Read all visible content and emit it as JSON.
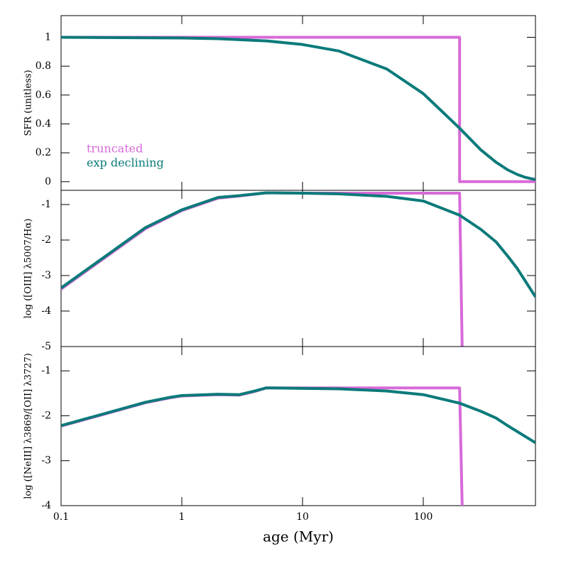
{
  "chart_data": [
    {
      "type": "line",
      "ylabel": "SFR (unitless)",
      "xlim": [
        0.1,
        850
      ],
      "xlog": true,
      "ylim": [
        -0.06,
        1.15
      ],
      "yticks": [
        0,
        0.2,
        0.4,
        0.6,
        0.8,
        1
      ],
      "legend": "lower left",
      "series": [
        {
          "name": "truncated",
          "color": "#d86ad8",
          "x": [
            0.1,
            200,
            200,
            850
          ],
          "values": [
            1,
            1,
            0,
            0
          ]
        },
        {
          "name": "exp declining",
          "color": "#0b7a7a",
          "x": [
            0.1,
            1,
            2,
            5,
            10,
            20,
            50,
            100,
            150,
            200,
            300,
            400,
            500,
            600,
            700,
            850
          ],
          "values": [
            1,
            0.995,
            0.99,
            0.975,
            0.95,
            0.905,
            0.78,
            0.61,
            0.47,
            0.37,
            0.22,
            0.135,
            0.082,
            0.05,
            0.03,
            0.014
          ]
        }
      ]
    },
    {
      "type": "line",
      "ylabel": "log ([OIII] λ5007/Hα)",
      "xlim": [
        0.1,
        850
      ],
      "xlog": true,
      "ylim": [
        -5,
        -0.6
      ],
      "yticks": [
        -5,
        -4,
        -3,
        -2,
        -1
      ],
      "series": [
        {
          "color": "#d86ad8",
          "x": [
            0.1,
            0.5,
            1,
            2,
            3,
            5,
            10,
            20,
            50,
            100,
            200,
            210
          ],
          "values": [
            -3.38,
            -1.68,
            -1.17,
            -0.82,
            -0.76,
            -0.67,
            -0.68,
            -0.68,
            -0.68,
            -0.68,
            -0.68,
            -5
          ]
        },
        {
          "color": "#0b7a7a",
          "x": [
            0.1,
            0.5,
            1,
            2,
            3,
            5,
            10,
            20,
            50,
            100,
            200,
            300,
            400,
            500,
            600,
            850
          ],
          "values": [
            -3.35,
            -1.65,
            -1.15,
            -0.8,
            -0.75,
            -0.67,
            -0.68,
            -0.7,
            -0.77,
            -0.9,
            -1.3,
            -1.7,
            -2.05,
            -2.45,
            -2.8,
            -3.6
          ]
        }
      ]
    },
    {
      "type": "line",
      "ylabel": "log ([NeIII] λ3869/[OII] λ3727)",
      "xlabel": "age (Myr)",
      "xlim": [
        0.1,
        850
      ],
      "xlog": true,
      "ylim": [
        -4,
        -0.46
      ],
      "yticks": [
        -4,
        -3,
        -2,
        -1
      ],
      "xticks": [
        0.1,
        1,
        10,
        100
      ],
      "series": [
        {
          "color": "#d86ad8",
          "x": [
            0.1,
            0.5,
            0.8,
            1,
            2,
            3,
            4,
            5,
            10,
            20,
            50,
            100,
            200,
            210
          ],
          "values": [
            -2.23,
            -1.71,
            -1.6,
            -1.56,
            -1.53,
            -1.54,
            -1.46,
            -1.38,
            -1.38,
            -1.38,
            -1.38,
            -1.38,
            -1.38,
            -4
          ]
        },
        {
          "color": "#0b7a7a",
          "x": [
            0.1,
            0.5,
            0.8,
            1,
            2,
            3,
            4,
            5,
            10,
            20,
            50,
            100,
            200,
            300,
            400,
            500,
            850
          ],
          "values": [
            -2.22,
            -1.7,
            -1.59,
            -1.55,
            -1.52,
            -1.53,
            -1.45,
            -1.38,
            -1.39,
            -1.4,
            -1.45,
            -1.53,
            -1.72,
            -1.9,
            -2.05,
            -2.22,
            -2.6
          ]
        }
      ]
    }
  ]
}
